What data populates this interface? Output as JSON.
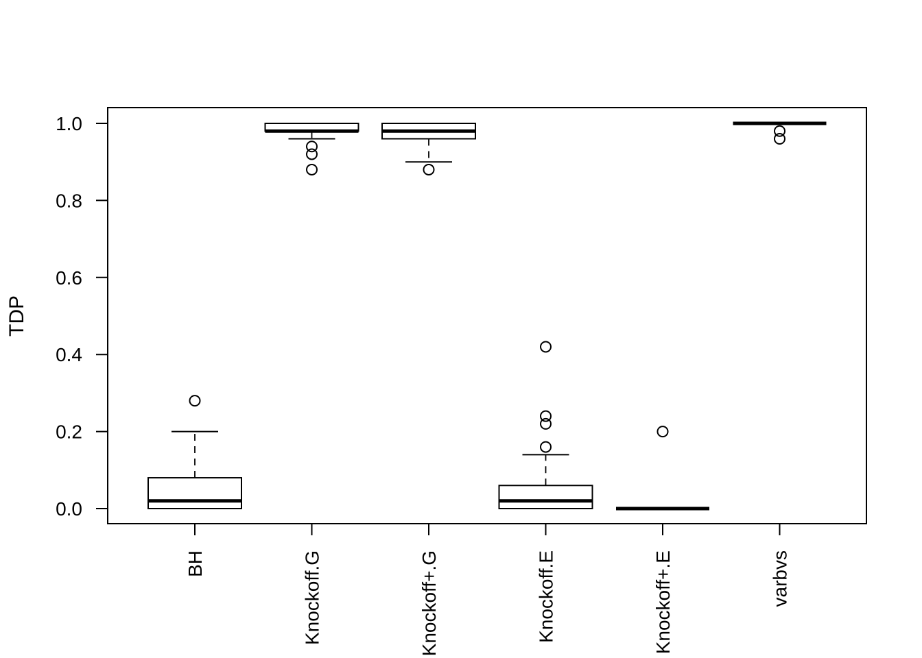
{
  "chart_data": {
    "type": "box",
    "title": "",
    "xlabel": "",
    "ylabel": "TDP",
    "ylim": [
      -0.04,
      1.04
    ],
    "yticks": [
      0.0,
      0.2,
      0.4,
      0.6,
      0.8,
      1.0
    ],
    "ytick_labels": [
      "0.0",
      "0.2",
      "0.4",
      "0.6",
      "0.8",
      "1.0"
    ],
    "grid": false,
    "legend": "none",
    "categories": [
      "BH",
      "Knockoff.G",
      "Knockoff+.G",
      "Knockoff.E",
      "Knockoff+.E",
      "varbvs"
    ],
    "boxes": [
      {
        "name": "BH",
        "whisker_low": 0.0,
        "q1": 0.0,
        "median": 0.02,
        "q3": 0.08,
        "whisker_high": 0.2,
        "outliers": [
          0.28
        ]
      },
      {
        "name": "Knockoff.G",
        "whisker_low": 0.96,
        "q1": 0.98,
        "median": 0.98,
        "q3": 1.0,
        "whisker_high": 1.0,
        "outliers": [
          0.94,
          0.92,
          0.88
        ]
      },
      {
        "name": "Knockoff+.G",
        "whisker_low": 0.9,
        "q1": 0.96,
        "median": 0.98,
        "q3": 1.0,
        "whisker_high": 1.0,
        "outliers": [
          0.88
        ]
      },
      {
        "name": "Knockoff.E",
        "whisker_low": 0.0,
        "q1": 0.0,
        "median": 0.02,
        "q3": 0.06,
        "whisker_high": 0.14,
        "outliers": [
          0.42,
          0.24,
          0.22,
          0.16
        ]
      },
      {
        "name": "Knockoff+.E",
        "whisker_low": 0.0,
        "q1": 0.0,
        "median": 0.0,
        "q3": 0.0,
        "whisker_high": 0.0,
        "outliers": [
          0.2
        ]
      },
      {
        "name": "varbvs",
        "whisker_low": 1.0,
        "q1": 1.0,
        "median": 1.0,
        "q3": 1.0,
        "whisker_high": 1.0,
        "outliers": [
          0.98,
          0.96
        ]
      }
    ]
  }
}
